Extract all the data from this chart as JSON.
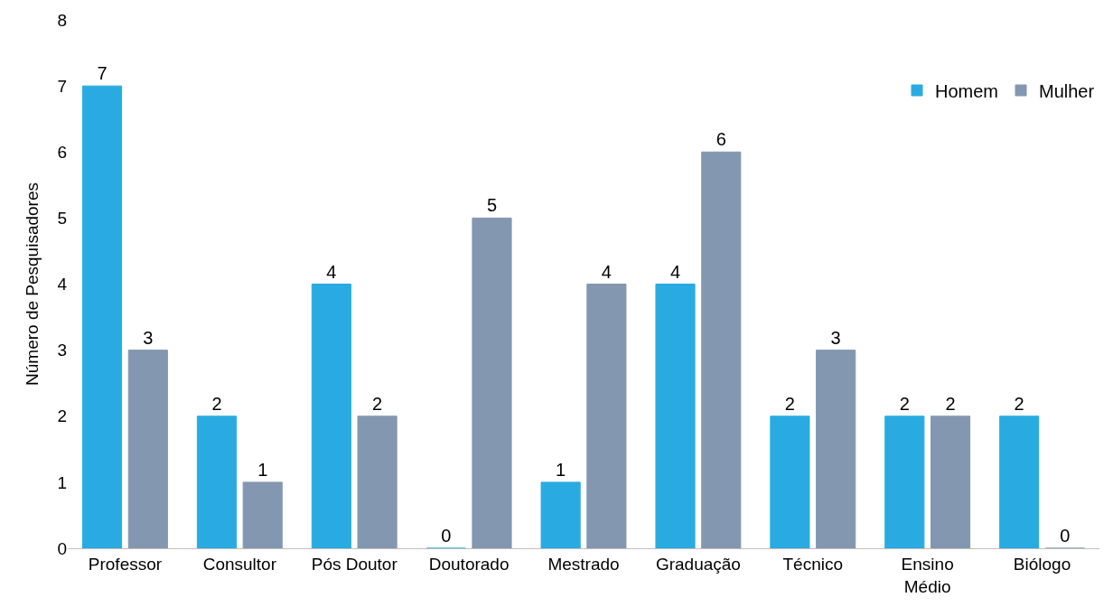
{
  "chart_data": {
    "type": "bar",
    "ylabel": "Número de Pesquisadores",
    "categories": [
      "Professor",
      "Consultor",
      "Pós Doutor",
      "Doutorado",
      "Mestrado",
      "Graduação",
      "Técnico",
      "Ensino\nMédio",
      "Biólogo"
    ],
    "series": [
      {
        "name": "Homem",
        "color": "#29abe2",
        "values": [
          7,
          2,
          4,
          0,
          1,
          4,
          2,
          2,
          2
        ]
      },
      {
        "name": "Mulher",
        "color": "#8497b0",
        "values": [
          3,
          1,
          2,
          5,
          4,
          6,
          3,
          2,
          0
        ]
      }
    ],
    "ylim": [
      0,
      8
    ],
    "yticks": [
      0,
      1,
      2,
      3,
      4,
      5,
      6,
      7,
      8
    ],
    "legend": "top right",
    "data_labels": true
  }
}
